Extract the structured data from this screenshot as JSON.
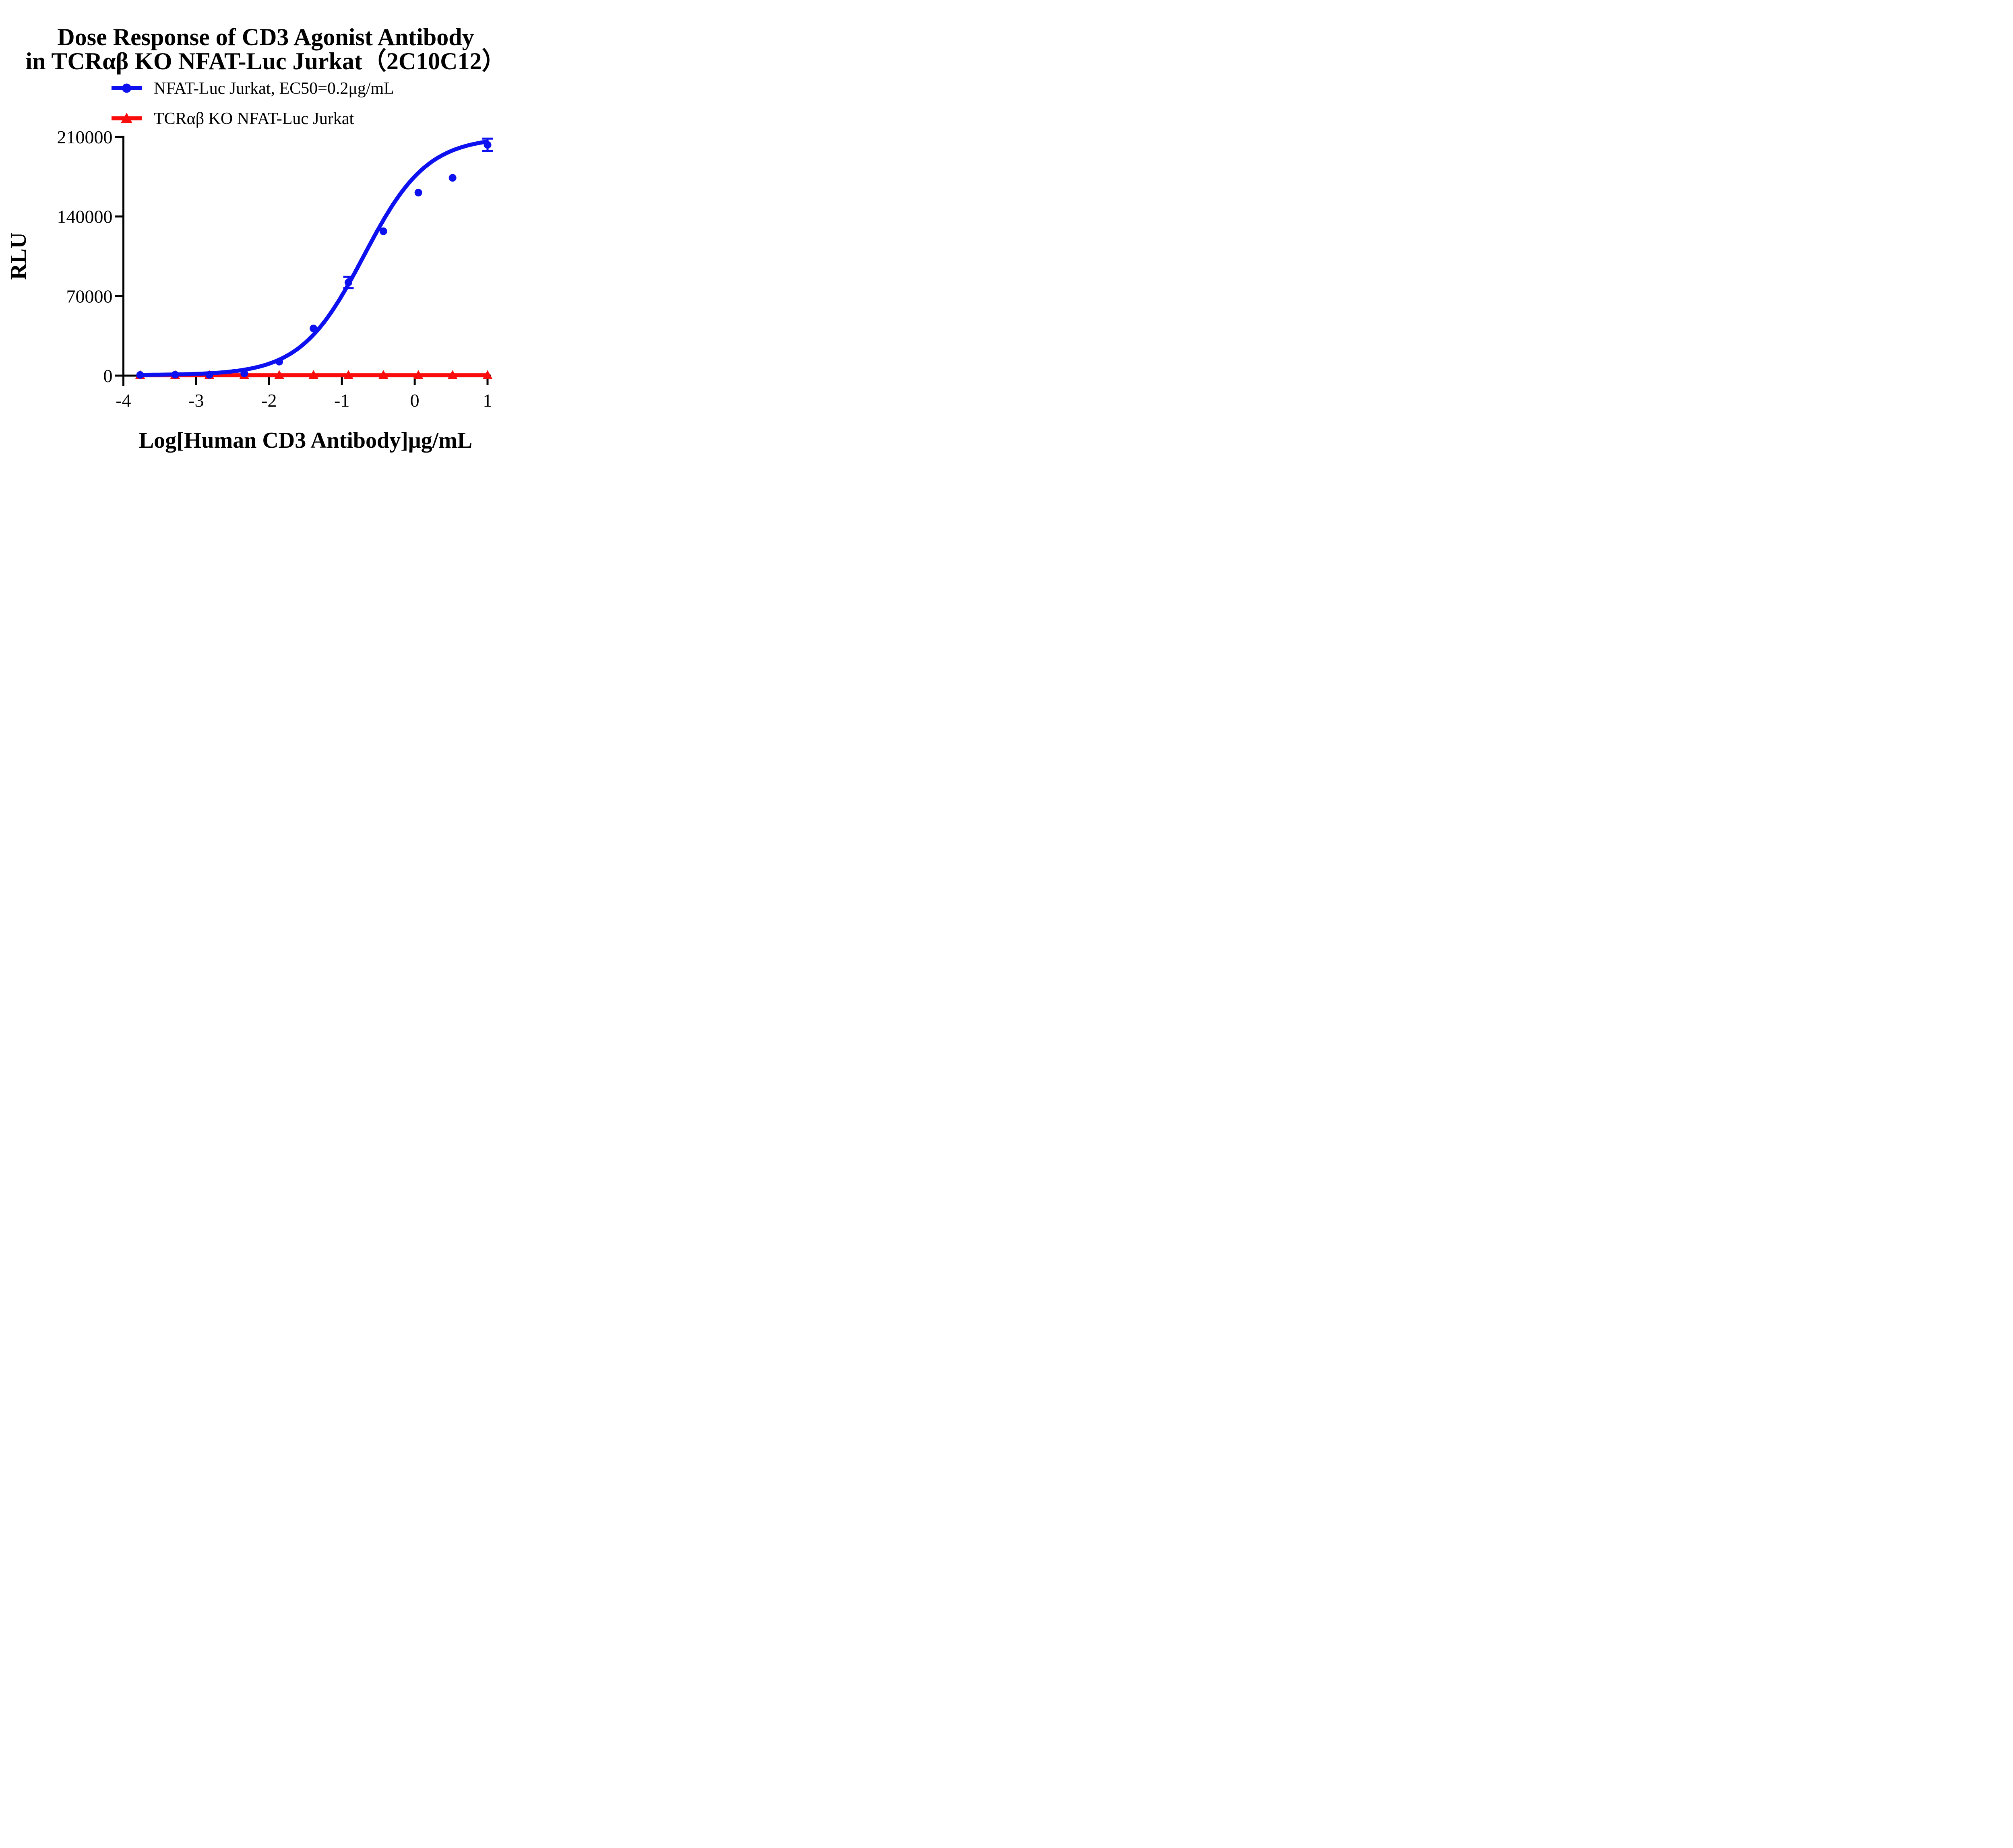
{
  "chart_data": {
    "type": "scatter",
    "title_line1": "Dose Response of CD3 Agonist Antibody",
    "title_line2": "in TCRαβ KO NFAT-Luc Jurkat（2C10C12）",
    "xlabel": "Log[Human CD3 Antibody]μg/mL",
    "ylabel": "RLU",
    "x_ticks": [
      -4,
      -3,
      -2,
      -1,
      0,
      1
    ],
    "y_ticks": [
      0,
      70000,
      140000,
      210000
    ],
    "xlim": [
      -4,
      1.05
    ],
    "ylim": [
      0,
      210000
    ],
    "grid": false,
    "legend_position": "top-center",
    "background_color": "#ffffff",
    "axis_color": "#000000",
    "series": [
      {
        "name": "NFAT-Luc Jurkat, EC50=0.2μg/mL",
        "color": "#0E11EF",
        "marker": "circle",
        "x": [
          -3.77,
          -3.29,
          -2.82,
          -2.34,
          -1.86,
          -1.39,
          -0.91,
          -0.43,
          0.05,
          0.52,
          1.0
        ],
        "y": [
          600,
          800,
          700,
          2000,
          12300,
          41500,
          82000,
          127000,
          161000,
          174000,
          203000
        ],
        "y_err": [
          0,
          0,
          0,
          0,
          0,
          0,
          5000,
          0,
          0,
          0,
          5500
        ],
        "fit_curve": {
          "model": "4PL",
          "bottom": 500,
          "top": 210000,
          "log_ec50": -0.7,
          "ec50_label": "0.2μg/mL",
          "hill": 1.0,
          "x_start": -3.77,
          "x_end": 1.0
        }
      },
      {
        "name": "TCRαβ KO NFAT-Luc Jurkat",
        "color": "#FA0C0C",
        "marker": "triangle",
        "x": [
          -3.77,
          -3.29,
          -2.82,
          -2.34,
          -1.86,
          -1.39,
          -0.91,
          -0.43,
          0.05,
          0.52,
          1.0
        ],
        "y": [
          300,
          300,
          300,
          300,
          300,
          300,
          300,
          300,
          300,
          300,
          300
        ],
        "y_err": [
          0,
          0,
          0,
          0,
          0,
          0,
          0,
          0,
          0,
          0,
          0
        ]
      }
    ]
  }
}
